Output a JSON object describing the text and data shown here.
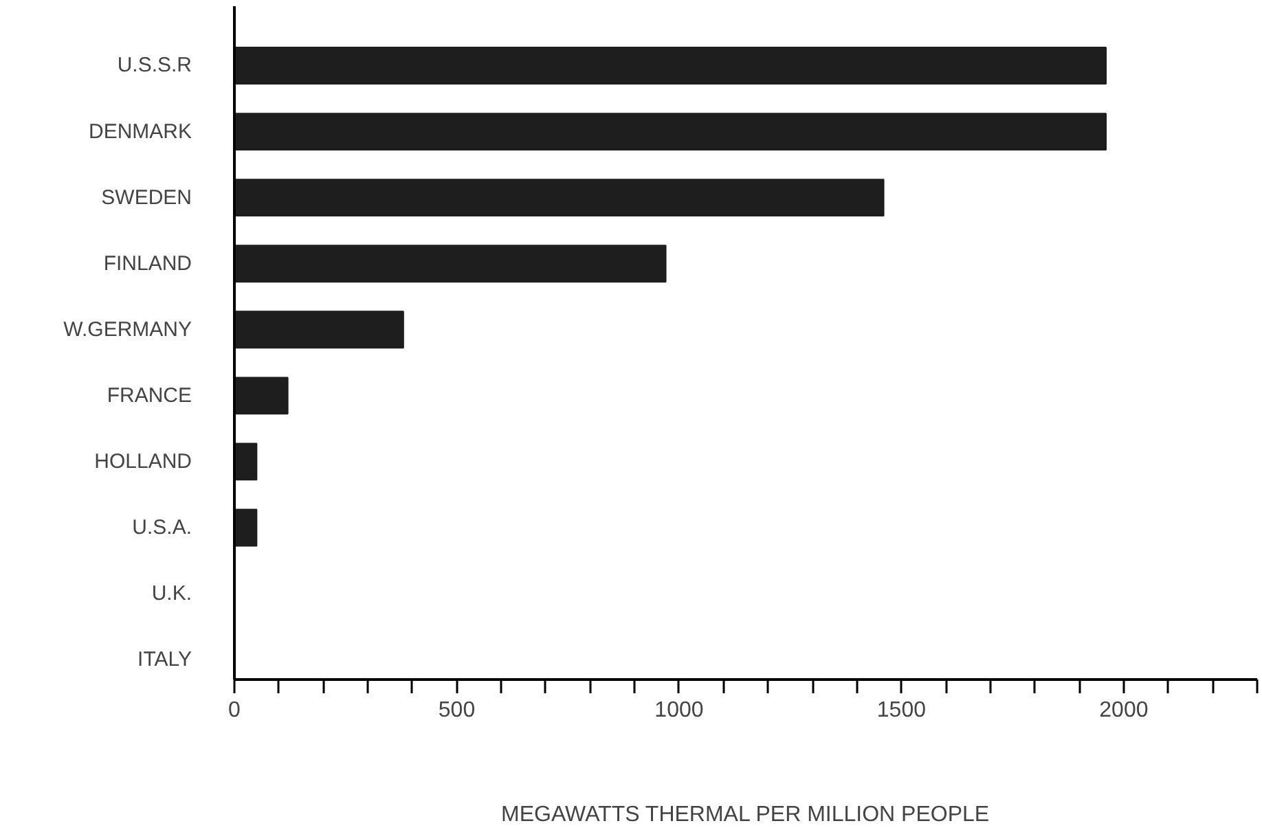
{
  "chart_data": {
    "type": "bar",
    "orientation": "horizontal",
    "xlabel": "MEGAWATTS THERMAL PER MILLION PEOPLE",
    "categories": [
      "U.S.S.R",
      "DENMARK",
      "SWEDEN",
      "FINLAND",
      "W.GERMANY",
      "FRANCE",
      "HOLLAND",
      "U.S.A.",
      "U.K.",
      "ITALY"
    ],
    "values": [
      1960,
      1960,
      1460,
      970,
      380,
      120,
      50,
      50,
      0,
      0
    ],
    "color": "#1e1e1e",
    "xlim": [
      0,
      2300
    ],
    "xticks": [
      0,
      {
        "value": 100,
        "label": null
      },
      {
        "value": 200,
        "label": null
      },
      {
        "value": 300,
        "label": null
      },
      {
        "value": 400,
        "label": null
      },
      500,
      {
        "value": 600,
        "label": null
      },
      {
        "value": 700,
        "label": null
      },
      {
        "value": 800,
        "label": null
      },
      {
        "value": 900,
        "label": null
      },
      1000,
      {
        "value": 1100,
        "label": null
      },
      {
        "value": 1200,
        "label": null
      },
      {
        "value": 1300,
        "label": null
      },
      {
        "value": 1400,
        "label": null
      },
      1500,
      {
        "value": 1600,
        "label": null
      },
      {
        "value": 1700,
        "label": null
      },
      {
        "value": 1800,
        "label": null
      },
      {
        "value": 1900,
        "label": null
      },
      2000,
      {
        "value": 2100,
        "label": null
      },
      {
        "value": 2200,
        "label": null
      },
      {
        "value": 2300,
        "label": null
      }
    ],
    "grid": false
  }
}
